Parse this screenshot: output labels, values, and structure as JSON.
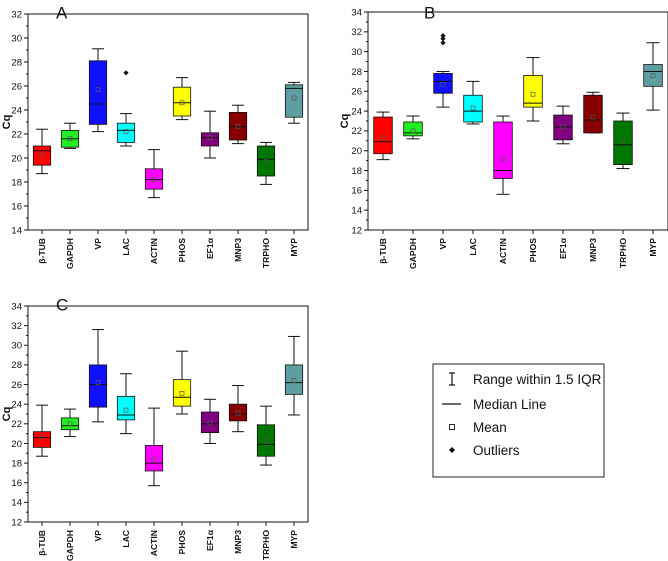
{
  "chart_data": [
    {
      "type": "box",
      "panel_label": "A",
      "ylabel": "Cq",
      "ylim": [
        14,
        32
      ],
      "yticks": [
        14,
        16,
        18,
        20,
        22,
        24,
        26,
        28,
        30,
        32
      ],
      "categories": [
        "β-TUB",
        "GAPDH",
        "VP",
        "LAC",
        "ACTIN",
        "PHOS",
        "EF1α",
        "MNP3",
        "TRPHO",
        "MYP"
      ],
      "colors": [
        "#ff0000",
        "#22ee22",
        "#1010ff",
        "#00ffff",
        "#ff00ff",
        "#ffff00",
        "#800080",
        "#880000",
        "#007700",
        "#5f9ea0"
      ],
      "boxes": [
        {
          "whisker_low": 18.7,
          "q1": 19.4,
          "median": 20.6,
          "q3": 21.0,
          "whisker_high": 22.4,
          "mean": 20.3,
          "outliers": []
        },
        {
          "whisker_low": 20.8,
          "q1": 20.9,
          "median": 21.6,
          "q3": 22.3,
          "whisker_high": 22.9,
          "mean": 21.6,
          "outliers": []
        },
        {
          "whisker_low": 22.2,
          "q1": 22.8,
          "median": 24.5,
          "q3": 28.1,
          "whisker_high": 29.1,
          "mean": 25.7,
          "outliers": []
        },
        {
          "whisker_low": 21.0,
          "q1": 21.3,
          "median": 22.3,
          "q3": 22.9,
          "whisker_high": 23.7,
          "mean": 22.2,
          "outliers": [
            27.1
          ]
        },
        {
          "whisker_low": 16.7,
          "q1": 17.4,
          "median": 18.2,
          "q3": 19.1,
          "whisker_high": 20.7,
          "mean": 18.2,
          "outliers": []
        },
        {
          "whisker_low": 23.2,
          "q1": 23.5,
          "median": 24.6,
          "q3": 25.9,
          "whisker_high": 26.7,
          "mean": 24.6,
          "outliers": []
        },
        {
          "whisker_low": 20.0,
          "q1": 21.0,
          "median": 21.7,
          "q3": 22.1,
          "whisker_high": 23.9,
          "mean": 21.7,
          "outliers": []
        },
        {
          "whisker_low": 21.2,
          "q1": 21.5,
          "median": 22.6,
          "q3": 23.8,
          "whisker_high": 24.4,
          "mean": 22.6,
          "outliers": []
        },
        {
          "whisker_low": 17.8,
          "q1": 18.5,
          "median": 19.9,
          "q3": 21.0,
          "whisker_high": 21.3,
          "mean": 19.7,
          "outliers": []
        },
        {
          "whisker_low": 22.9,
          "q1": 23.4,
          "median": 25.8,
          "q3": 26.1,
          "whisker_high": 26.3,
          "mean": 25.0,
          "outliers": []
        }
      ]
    },
    {
      "type": "box",
      "panel_label": "B",
      "ylabel": "Cq",
      "ylim": [
        12,
        34
      ],
      "yticks": [
        12,
        14,
        16,
        18,
        20,
        22,
        24,
        26,
        28,
        30,
        32,
        34
      ],
      "categories": [
        "β-TUB",
        "GAPDH",
        "VP",
        "LAC",
        "ACTIN",
        "PHOS",
        "EF1α",
        "MNP3",
        "TRPHO",
        "MYP"
      ],
      "colors": [
        "#ff0000",
        "#22ee22",
        "#1010ff",
        "#00ffff",
        "#ff00ff",
        "#ffff00",
        "#800080",
        "#880000",
        "#007700",
        "#5f9ea0"
      ],
      "boxes": [
        {
          "whisker_low": 19.1,
          "q1": 19.7,
          "median": 20.9,
          "q3": 23.4,
          "whisker_high": 23.9,
          "mean": 21.3,
          "outliers": []
        },
        {
          "whisker_low": 21.2,
          "q1": 21.5,
          "median": 21.8,
          "q3": 22.9,
          "whisker_high": 23.5,
          "mean": 22.0,
          "outliers": []
        },
        {
          "whisker_low": 24.4,
          "q1": 25.8,
          "median": 27.0,
          "q3": 27.8,
          "whisker_high": 28.0,
          "mean": 26.7,
          "outliers": [
            30.9,
            31.3,
            31.6
          ]
        },
        {
          "whisker_low": 22.7,
          "q1": 22.9,
          "median": 24.0,
          "q3": 25.6,
          "whisker_high": 27.0,
          "mean": 24.3,
          "outliers": []
        },
        {
          "whisker_low": 15.6,
          "q1": 17.2,
          "median": 18.0,
          "q3": 22.9,
          "whisker_high": 23.5,
          "mean": 19.2,
          "outliers": []
        },
        {
          "whisker_low": 23.0,
          "q1": 24.4,
          "median": 24.8,
          "q3": 27.6,
          "whisker_high": 29.4,
          "mean": 25.7,
          "outliers": []
        },
        {
          "whisker_low": 20.7,
          "q1": 21.1,
          "median": 22.4,
          "q3": 23.6,
          "whisker_high": 24.5,
          "mean": 22.4,
          "outliers": []
        },
        {
          "whisker_low": 21.8,
          "q1": 21.8,
          "median": 23.1,
          "q3": 25.6,
          "whisker_high": 25.9,
          "mean": 23.4,
          "outliers": []
        },
        {
          "whisker_low": 18.2,
          "q1": 18.6,
          "median": 20.6,
          "q3": 23.0,
          "whisker_high": 23.8,
          "mean": 20.9,
          "outliers": []
        },
        {
          "whisker_low": 24.1,
          "q1": 26.5,
          "median": 28.0,
          "q3": 28.7,
          "whisker_high": 30.9,
          "mean": 27.6,
          "outliers": []
        }
      ]
    },
    {
      "type": "box",
      "panel_label": "C",
      "ylabel": "Cq",
      "ylim": [
        12,
        34
      ],
      "yticks": [
        12,
        14,
        16,
        18,
        20,
        22,
        24,
        26,
        28,
        30,
        32,
        34
      ],
      "categories": [
        "β-TUB",
        "GAPDH",
        "VP",
        "LAC",
        "ACTIN",
        "PHOS",
        "EF1α",
        "MNP3",
        "TRPHO",
        "MYP"
      ],
      "colors": [
        "#ff0000",
        "#22ee22",
        "#1010ff",
        "#00ffff",
        "#ff00ff",
        "#ffff00",
        "#800080",
        "#880000",
        "#007700",
        "#5f9ea0"
      ],
      "boxes": [
        {
          "whisker_low": 18.7,
          "q1": 19.6,
          "median": 20.6,
          "q3": 21.2,
          "whisker_high": 23.9,
          "mean": 20.7,
          "outliers": []
        },
        {
          "whisker_low": 20.7,
          "q1": 21.4,
          "median": 21.8,
          "q3": 22.6,
          "whisker_high": 23.5,
          "mean": 22.0,
          "outliers": []
        },
        {
          "whisker_low": 22.2,
          "q1": 23.7,
          "median": 26.0,
          "q3": 28.0,
          "whisker_high": 31.6,
          "mean": 26.2,
          "outliers": []
        },
        {
          "whisker_low": 21.0,
          "q1": 22.4,
          "median": 22.9,
          "q3": 24.8,
          "whisker_high": 27.1,
          "mean": 23.4,
          "outliers": []
        },
        {
          "whisker_low": 15.7,
          "q1": 17.2,
          "median": 18.0,
          "q3": 19.8,
          "whisker_high": 23.6,
          "mean": 18.4,
          "outliers": []
        },
        {
          "whisker_low": 23.0,
          "q1": 23.8,
          "median": 24.7,
          "q3": 26.5,
          "whisker_high": 29.4,
          "mean": 25.1,
          "outliers": []
        },
        {
          "whisker_low": 20.0,
          "q1": 21.1,
          "median": 22.0,
          "q3": 23.2,
          "whisker_high": 24.5,
          "mean": 22.1,
          "outliers": []
        },
        {
          "whisker_low": 21.2,
          "q1": 22.3,
          "median": 23.0,
          "q3": 24.0,
          "whisker_high": 25.9,
          "mean": 23.1,
          "outliers": []
        },
        {
          "whisker_low": 17.8,
          "q1": 18.7,
          "median": 19.9,
          "q3": 21.9,
          "whisker_high": 23.8,
          "mean": 20.3,
          "outliers": []
        },
        {
          "whisker_low": 22.9,
          "q1": 25.0,
          "median": 26.2,
          "q3": 28.0,
          "whisker_high": 30.9,
          "mean": 26.4,
          "outliers": []
        }
      ]
    }
  ],
  "legend": {
    "items": [
      {
        "symbol": "range",
        "label": "Range within 1.5 IQR"
      },
      {
        "symbol": "median",
        "label": "Median Line"
      },
      {
        "symbol": "mean",
        "label": "Mean"
      },
      {
        "symbol": "outlier",
        "label": "Outliers"
      }
    ]
  }
}
